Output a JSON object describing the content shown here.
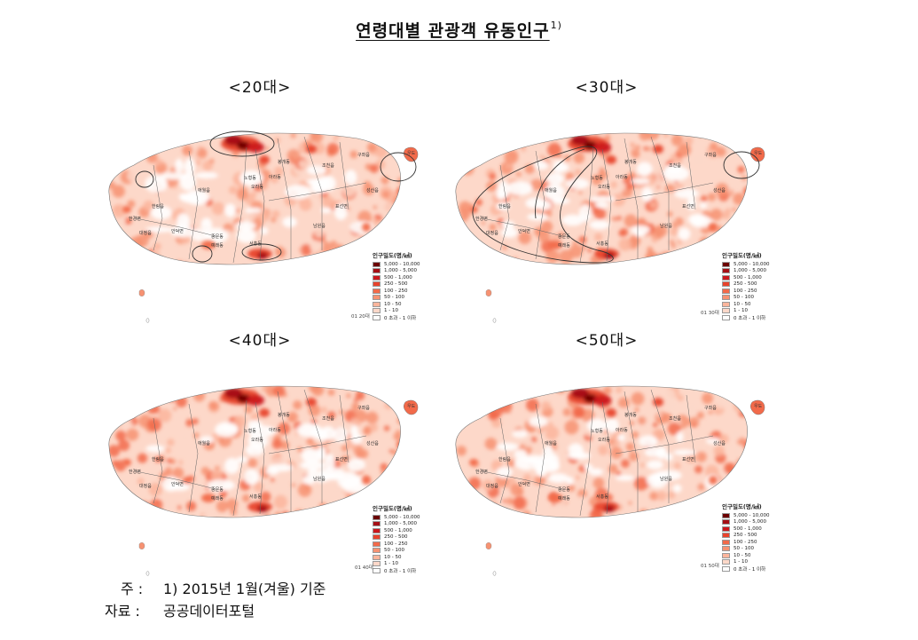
{
  "title": "연령대별 관광객 유동인구",
  "title_footnote": "1)",
  "legend": {
    "title": "인구밀도(명/㎢)",
    "classes": [
      {
        "label": "5,000 - 10,000",
        "color": "#6b0000"
      },
      {
        "label": "1,000 - 5,000",
        "color": "#a50f15"
      },
      {
        "label": "500 - 1,000",
        "color": "#cb181d"
      },
      {
        "label": "250 - 500",
        "color": "#e8432c"
      },
      {
        "label": "100 - 250",
        "color": "#f26a4a"
      },
      {
        "label": "50 - 100",
        "color": "#f79272"
      },
      {
        "label": "10 - 50",
        "color": "#fbb59c"
      },
      {
        "label": "1 - 10",
        "color": "#fdd8c9"
      },
      {
        "label": "0 초과 - 1 이하",
        "color": "#ffffff"
      }
    ]
  },
  "region_labels": [
    "구좌읍",
    "조천읍",
    "봉개동",
    "아라동",
    "노형동",
    "오라동",
    "애월읍",
    "한림읍",
    "한경면",
    "대정읍",
    "안덕면",
    "중문동",
    "예래동",
    "서홍동",
    "남원읍",
    "표선면",
    "성산읍",
    "우도"
  ],
  "panels": [
    {
      "label": "<20대>",
      "code": "01 20대",
      "intensity": 0.45
    },
    {
      "label": "<30대>",
      "code": "01 30대",
      "intensity": 0.6
    },
    {
      "label": "<40대>",
      "code": "01 40대",
      "intensity": 0.75
    },
    {
      "label": "<50대>",
      "code": "01 50대",
      "intensity": 0.55
    }
  ],
  "notes": {
    "note_key": "주 :",
    "note_text": "1)  2015년  1월(겨울)  기준",
    "source_key": "자료 :",
    "source_text": "공공데이터포털"
  }
}
